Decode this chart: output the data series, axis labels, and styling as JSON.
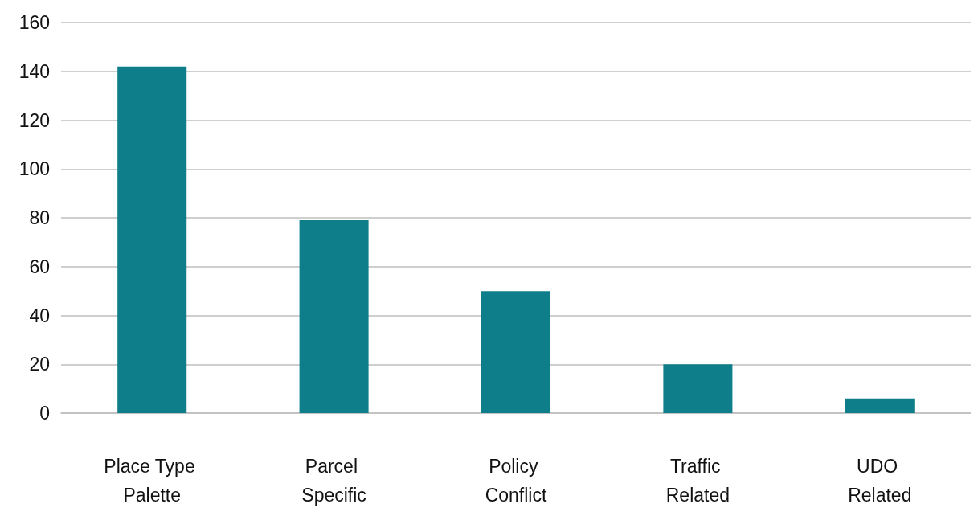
{
  "chart_data": {
    "type": "bar",
    "categories": [
      "Place Type Palette",
      "Parcel Specific",
      "Policy Conflict",
      "Traffic Related",
      "UDO Related"
    ],
    "values": [
      142,
      79,
      50,
      20,
      6
    ],
    "color": "#0f7e8b",
    "ylim": [
      0,
      160
    ],
    "yticks": [
      0,
      20,
      40,
      60,
      80,
      100,
      120,
      140,
      160
    ],
    "grid": "y"
  }
}
